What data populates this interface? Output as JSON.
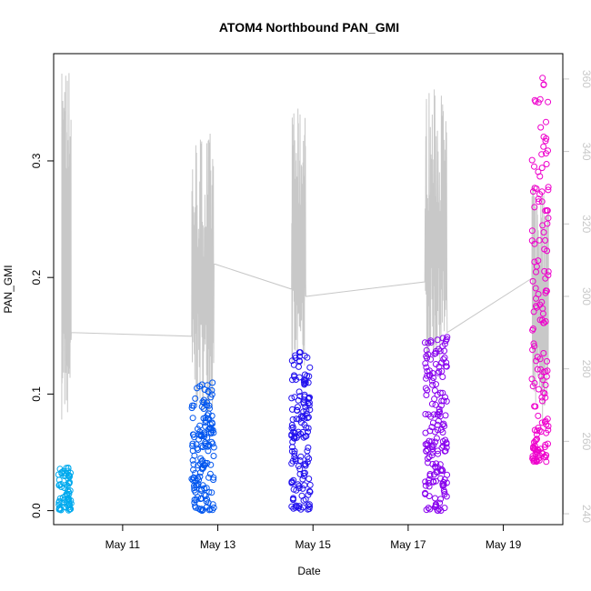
{
  "chart_data": {
    "type": "scatter",
    "title": "ATOM4 Northbound PAN_GMI",
    "xlabel": "Date",
    "ylabel": "PAN_GMI",
    "x_unit": "days (May 2021 calendar day, fractional)",
    "xlim": [
      9.55,
      20.25
    ],
    "ylim": [
      -0.012,
      0.392
    ],
    "y2lim": [
      237,
      367
    ],
    "x_ticks": [
      {
        "value": 11,
        "label": "May 11"
      },
      {
        "value": 13,
        "label": "May 13"
      },
      {
        "value": 15,
        "label": "May 15"
      },
      {
        "value": 17,
        "label": "May 17"
      },
      {
        "value": 19,
        "label": "May 19"
      }
    ],
    "y_ticks": [
      {
        "value": 0.0,
        "label": "0.0"
      },
      {
        "value": 0.1,
        "label": "0.1"
      },
      {
        "value": 0.2,
        "label": "0.2"
      },
      {
        "value": 0.3,
        "label": "0.3"
      }
    ],
    "y2_ticks": [
      {
        "value": 240,
        "label": "240"
      },
      {
        "value": 260,
        "label": "260"
      },
      {
        "value": 280,
        "label": "280"
      },
      {
        "value": 300,
        "label": "300"
      },
      {
        "value": 320,
        "label": "320"
      },
      {
        "value": 340,
        "label": "340"
      },
      {
        "value": 360,
        "label": "360"
      }
    ],
    "grid": false,
    "point_clusters": [
      {
        "color": "#00aaee",
        "x": [
          9.65,
          9.92
        ],
        "y": [
          0.0,
          0.038
        ],
        "count": 70
      },
      {
        "color": "#0055ee",
        "x": [
          12.45,
          12.92
        ],
        "y": [
          0.0,
          0.11
        ],
        "count": 150
      },
      {
        "color": "#2211ee",
        "x": [
          14.55,
          14.95
        ],
        "y": [
          0.0,
          0.138
        ],
        "count": 150
      },
      {
        "color": "#8800ee",
        "x": [
          17.35,
          17.82
        ],
        "y": [
          0.0,
          0.15
        ],
        "count": 170
      },
      {
        "color": "#ee00cc",
        "x": [
          19.6,
          19.95
        ],
        "y": [
          0.042,
          0.38
        ],
        "count": 160
      }
    ],
    "line_series": {
      "color": "#c8c8c8",
      "axis": "right",
      "segments": [
        {
          "x": [
            9.72,
            9.92
          ],
          "y_min": 266,
          "y_max": 365
        },
        {
          "x": [
            12.45,
            12.92
          ],
          "y_min": 268,
          "y_max": 346
        },
        {
          "x": [
            14.55,
            14.85
          ],
          "y_min": 279,
          "y_max": 352
        },
        {
          "x": [
            17.35,
            17.82
          ],
          "y_min": 281,
          "y_max": 358
        },
        {
          "x": [
            19.6,
            19.95
          ],
          "y_min": 266,
          "y_max": 331
        }
      ],
      "connectors": [
        {
          "x": [
            9.92,
            12.45
          ],
          "y": [
            290,
            289
          ]
        },
        {
          "x": [
            12.92,
            14.55
          ],
          "y": [
            309,
            302
          ]
        },
        {
          "x": [
            14.85,
            17.35
          ],
          "y": [
            300,
            304
          ]
        },
        {
          "x": [
            17.82,
            19.6
          ],
          "y": [
            290,
            305
          ]
        }
      ]
    }
  }
}
